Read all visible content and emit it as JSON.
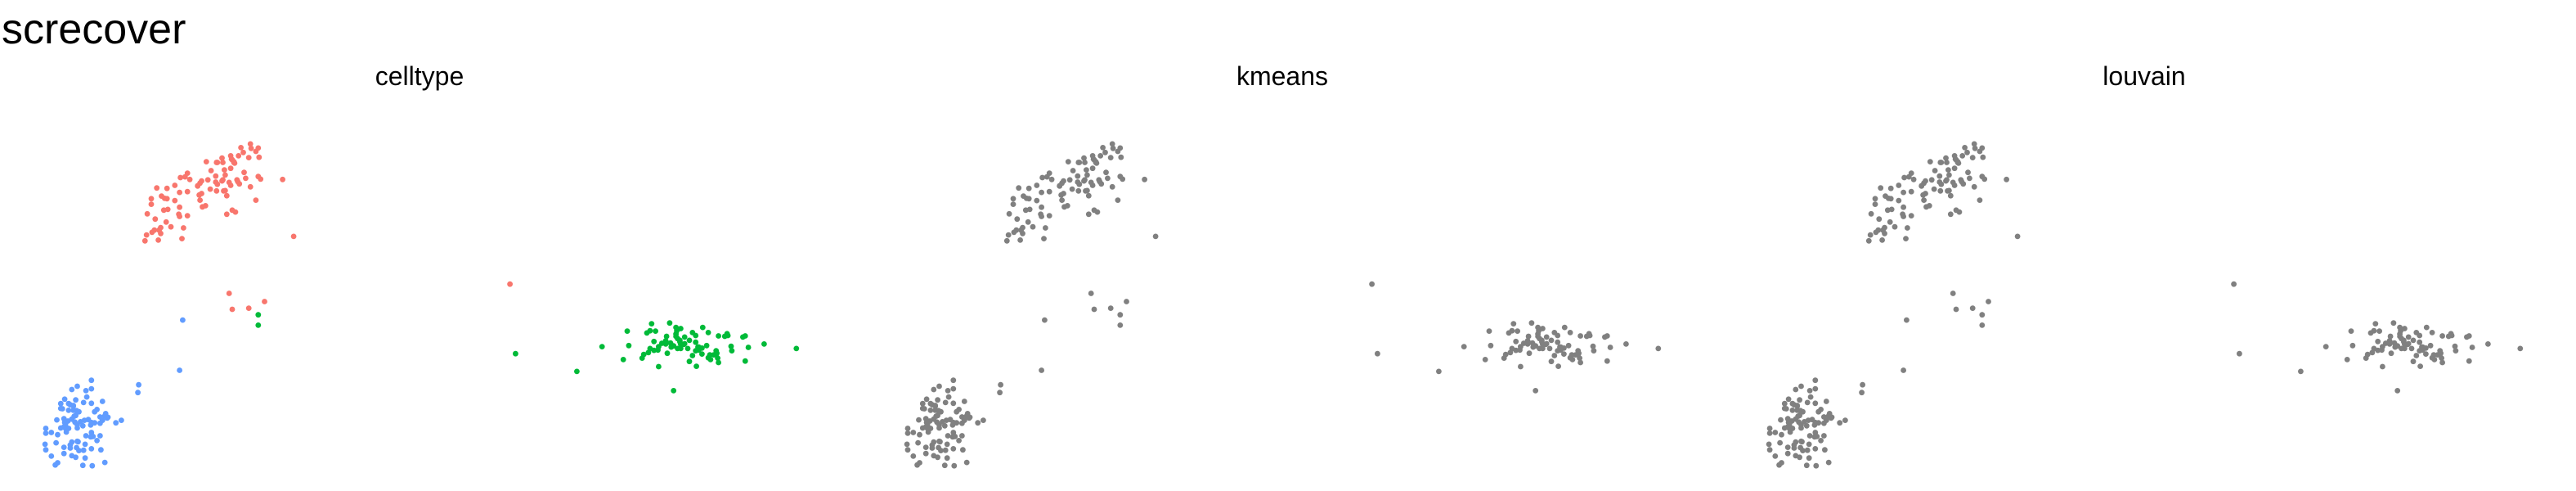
{
  "title": "screcover",
  "chart_data": {
    "type": "scatter",
    "grid": false,
    "axes_visible": false,
    "legend": "none",
    "facet_colors": {
      "celltype": {
        "cluster_1": "#f8766d",
        "cluster_2": "#00ba38",
        "cluster_3": "#619cff"
      },
      "kmeans": {
        "all": "#808080"
      },
      "louvain": {
        "all": "#808080"
      }
    },
    "xlim": [
      0,
      100
    ],
    "ylim": [
      0,
      100
    ],
    "panels": [
      {
        "title": "celltype",
        "color_by_cluster": true
      },
      {
        "title": "kmeans",
        "color_by_cluster": false
      },
      {
        "title": "louvain",
        "color_by_cluster": false
      }
    ],
    "clusters": [
      {
        "id": "cluster_1",
        "points": [
          [
            24.2,
            76.7
          ],
          [
            20.8,
            79.8
          ],
          [
            17.2,
            75.3
          ],
          [
            23.1,
            79.7
          ],
          [
            21.8,
            78.1
          ],
          [
            22.8,
            72.7
          ],
          [
            18.9,
            78.2
          ],
          [
            16.6,
            77.5
          ],
          [
            17.1,
            65.2
          ],
          [
            15.9,
            73.1
          ],
          [
            18.0,
            71.7
          ],
          [
            16.8,
            63.4
          ],
          [
            24.2,
            84.4
          ],
          [
            17.9,
            74.6
          ],
          [
            20.0,
            66.7
          ],
          [
            16.9,
            66.1
          ],
          [
            15.1,
            63.2
          ],
          [
            19.8,
            63.8
          ],
          [
            17.5,
            71.5
          ],
          [
            25.1,
            76.7
          ],
          [
            24.9,
            79.4
          ],
          [
            27.7,
            81.7
          ],
          [
            25.3,
            76.8
          ],
          [
            25.0,
            84.4
          ],
          [
            26.0,
            78.2
          ],
          [
            20.5,
            76.5
          ],
          [
            22.9,
            84.6
          ],
          [
            26.4,
            84.6
          ],
          [
            25.5,
            75.4
          ],
          [
            20.5,
            81.5
          ],
          [
            23.5,
            82.2
          ],
          [
            25.8,
            79.0
          ],
          [
            24.3,
            78.5
          ],
          [
            26.5,
            84.2
          ],
          [
            17.9,
            77.4
          ],
          [
            18.4,
            67.0
          ],
          [
            15.9,
            74.6
          ],
          [
            29.5,
            88.3
          ],
          [
            26.2,
            85.1
          ],
          [
            24.9,
            85.6
          ],
          [
            26.0,
            82.8
          ],
          [
            16.3,
            66.1
          ],
          [
            29.5,
            80.6
          ],
          [
            19.4,
            70.4
          ],
          [
            29.2,
            74.2
          ],
          [
            24.3,
            84.4
          ],
          [
            16.4,
            69.1
          ],
          [
            29.2,
            87.4
          ],
          [
            27.9,
            80.1
          ],
          [
            26.2,
            71.5
          ],
          [
            18.9,
            74.1
          ],
          [
            28.5,
            89.4
          ],
          [
            26.8,
            79.7
          ],
          [
            27.6,
            87.1
          ],
          [
            19.5,
            72.3
          ],
          [
            15.4,
            70.5
          ],
          [
            27.0,
            86.2
          ],
          [
            19.6,
            80.3
          ],
          [
            27.1,
            78.6
          ],
          [
            19.5,
            76.3
          ],
          [
            22.1,
            74.2
          ],
          [
            22.1,
            78.8
          ],
          [
            16.0,
            65.5
          ],
          [
            17.6,
            74.7
          ],
          [
            24.1,
            79.1
          ],
          [
            26.0,
            86.2
          ],
          [
            21.8,
            78.0
          ],
          [
            22.0,
            75.6
          ],
          [
            17.8,
            68.3
          ],
          [
            22.3,
            76.0
          ],
          [
            23.4,
            77.2
          ],
          [
            19.5,
            69.8
          ],
          [
            25.5,
            70.4
          ],
          [
            25.2,
            82.4
          ],
          [
            29.6,
            85.8
          ],
          [
            22.3,
            79.4
          ],
          [
            32.6,
            79.8
          ],
          [
            26.6,
            71.0
          ],
          [
            34.0,
            64.4
          ],
          [
            20.2,
            80.5
          ],
          [
            28.5,
            77.8
          ],
          [
            17.1,
            66.8
          ],
          [
            20.5,
            70.0
          ],
          [
            28.6,
            88.2
          ],
          [
            24.1,
            80.7
          ],
          [
            25.0,
            79.7
          ],
          [
            29.8,
            79.9
          ],
          [
            26.1,
            85.3
          ],
          [
            26.4,
            84.4
          ],
          [
            15.3,
            64.8
          ],
          [
            22.4,
            72.4
          ],
          [
            27.3,
            88.4
          ],
          [
            25.3,
            81.0
          ],
          [
            28.3,
            85.7
          ],
          [
            26.9,
            79.2
          ],
          [
            25.8,
            49.0
          ],
          [
            26.2,
            44.7
          ],
          [
            28.3,
            45.0
          ],
          [
            30.3,
            46.8
          ],
          [
            61.5,
            51.5
          ]
        ]
      },
      {
        "id": "cluster_2",
        "points": [
          [
            82.3,
            34.8
          ],
          [
            80.8,
            35.5
          ],
          [
            82.6,
            38.0
          ],
          [
            80.3,
            33.7
          ],
          [
            79.8,
            36.0
          ],
          [
            78.5,
            32.5
          ],
          [
            83.7,
            35.4
          ],
          [
            82.8,
            34.1
          ],
          [
            87.0,
            31.1
          ],
          [
            83.7,
            37.2
          ],
          [
            85.9,
            34.2
          ],
          [
            81.9,
            35.6
          ],
          [
            86.7,
            31.6
          ],
          [
            85.4,
            34.5
          ],
          [
            78.9,
            38.3
          ],
          [
            84.7,
            32.2
          ],
          [
            82.6,
            39.8
          ],
          [
            89.7,
            33.5
          ],
          [
            84.1,
            34.1
          ],
          [
            85.1,
            35.8
          ],
          [
            83.1,
            35.9
          ],
          [
            86.7,
            38.4
          ],
          [
            76.4,
            38.8
          ],
          [
            83.2,
            39.5
          ],
          [
            79.5,
            40.8
          ],
          [
            79.3,
            34.1
          ],
          [
            84.3,
            30.6
          ],
          [
            84.3,
            36.3
          ],
          [
            83.2,
            35.2
          ],
          [
            85.9,
            32.6
          ],
          [
            85.1,
            37.6
          ],
          [
            82.7,
            38.9
          ],
          [
            89.2,
            37.6
          ],
          [
            91.1,
            37.2
          ],
          [
            82.0,
            34.5
          ],
          [
            85.2,
            29.3
          ],
          [
            87.9,
            31.5
          ],
          [
            81.3,
            35.3
          ],
          [
            86.5,
            34.9
          ],
          [
            87.8,
            32.8
          ],
          [
            88.8,
            37.4
          ],
          [
            78.3,
            31.5
          ],
          [
            84.7,
            38.4
          ],
          [
            82.6,
            37.4
          ],
          [
            83.2,
            34.1
          ],
          [
            82.8,
            36.8
          ],
          [
            85.5,
            34.5
          ],
          [
            79.3,
            38.9
          ],
          [
            81.3,
            36.2
          ],
          [
            80.0,
            38.8
          ],
          [
            88.0,
            30.3
          ],
          [
            87.4,
            32.4
          ],
          [
            81.3,
            35.9
          ],
          [
            91.4,
            30.7
          ],
          [
            79.1,
            33.0
          ],
          [
            91.8,
            34.4
          ],
          [
            86.0,
            39.8
          ],
          [
            76.6,
            34.9
          ],
          [
            85.1,
            33.5
          ],
          [
            87.7,
            33.5
          ],
          [
            88.0,
            37.5
          ],
          [
            91.4,
            37.5
          ],
          [
            83.6,
            35.2
          ],
          [
            81.8,
            41.0
          ],
          [
            85.5,
            33.7
          ],
          [
            89.1,
            38.1
          ],
          [
            79.8,
            33.6
          ],
          [
            83.1,
            36.3
          ],
          [
            80.4,
            34.6
          ],
          [
            89.6,
            34.7
          ],
          [
            81.4,
            37.4
          ],
          [
            81.5,
            32.8
          ],
          [
            86.9,
            32.4
          ],
          [
            93.8,
            35.3
          ],
          [
            97.9,
            34.1
          ],
          [
            80.4,
            29.2
          ],
          [
            73.2,
            34.6
          ],
          [
            82.3,
            22.7
          ],
          [
            70.0,
            27.9
          ],
          [
            75.9,
            31.1
          ],
          [
            62.2,
            32.7
          ],
          [
            29.5,
            40.4
          ],
          [
            29.5,
            43.2
          ]
        ]
      },
      {
        "id": "cluster_3",
        "points": [
          [
            8.5,
            10.3
          ],
          [
            5.0,
            12.5
          ],
          [
            5.0,
            13.8
          ],
          [
            7.9,
            14.9
          ],
          [
            4.6,
            17.8
          ],
          [
            6.0,
            18.5
          ],
          [
            7.6,
            10.5
          ],
          [
            4.8,
            12.9
          ],
          [
            10.1,
            16.5
          ],
          [
            3.2,
            11.4
          ],
          [
            4.8,
            7.4
          ],
          [
            6.6,
            8.9
          ],
          [
            8.3,
            23.2
          ],
          [
            6.0,
            18.7
          ],
          [
            5.0,
            13.3
          ],
          [
            8.3,
            11.4
          ],
          [
            11.4,
            14.0
          ],
          [
            12.1,
            14.7
          ],
          [
            7.2,
            13.2
          ],
          [
            9.5,
            6.7
          ],
          [
            7.4,
            14.7
          ],
          [
            5.8,
            5.1
          ],
          [
            9.7,
            14.7
          ],
          [
            9.0,
            9.2
          ],
          [
            6.3,
            4.7
          ],
          [
            5.1,
            11.5
          ],
          [
            7.3,
            6.6
          ],
          [
            3.9,
            14.8
          ],
          [
            10.0,
            15.9
          ],
          [
            2.5,
            11.2
          ],
          [
            6.3,
            20.2
          ],
          [
            6.4,
            17.3
          ],
          [
            6.2,
            14.2
          ],
          [
            6.0,
            17.4
          ],
          [
            6.5,
            9.0
          ],
          [
            4.0,
            10.8
          ],
          [
            5.4,
            17.4
          ],
          [
            5.8,
            23.0
          ],
          [
            6.5,
            12.6
          ],
          [
            8.2,
            10.2
          ],
          [
            6.7,
            17.0
          ],
          [
            4.8,
            15.1
          ],
          [
            4.0,
            3.2
          ],
          [
            5.4,
            12.5
          ],
          [
            7.7,
            21.0
          ],
          [
            8.3,
            25.5
          ],
          [
            7.6,
            22.7
          ],
          [
            8.7,
            17.0
          ],
          [
            9.7,
            19.8
          ],
          [
            4.9,
            20.4
          ],
          [
            8.4,
            2.4
          ],
          [
            2.5,
            12.5
          ],
          [
            6.7,
            6.5
          ],
          [
            9.4,
            10.5
          ],
          [
            10.0,
            3.3
          ],
          [
            8.3,
            14.1
          ],
          [
            4.8,
            5.7
          ],
          [
            7.3,
            19.5
          ],
          [
            5.6,
            7.2
          ],
          [
            5.8,
            15.0
          ],
          [
            3.2,
            5.0
          ],
          [
            6.5,
            13.4
          ],
          [
            8.3,
            19.3
          ],
          [
            6.3,
            16.0
          ],
          [
            6.9,
            14.3
          ],
          [
            4.9,
            14.1
          ],
          [
            5.6,
            18.9
          ],
          [
            10.3,
            15.3
          ],
          [
            7.2,
            2.5
          ],
          [
            5.4,
            19.2
          ],
          [
            9.0,
            17.6
          ],
          [
            8.2,
            13.4
          ],
          [
            5.3,
            14.5
          ],
          [
            10.4,
            15.5
          ],
          [
            9.4,
            13.9
          ],
          [
            6.1,
            15.8
          ],
          [
            3.8,
            8.6
          ],
          [
            4.4,
            17.9
          ],
          [
            4.4,
            19.2
          ],
          [
            14.2,
            22.2
          ],
          [
            14.3,
            24.3
          ],
          [
            7.5,
            8.2
          ],
          [
            4.4,
            12.6
          ],
          [
            6.4,
            7.3
          ],
          [
            8.3,
            7.0
          ],
          [
            5.8,
            8.8
          ],
          [
            6.5,
            23.9
          ],
          [
            2.4,
            8.2
          ],
          [
            8.4,
            10.3
          ],
          [
            2.5,
            6.7
          ],
          [
            7.5,
            4.5
          ],
          [
            8.7,
            14.0
          ],
          [
            3.7,
            2.6
          ],
          [
            9.4,
            15.6
          ],
          [
            5.6,
            8.0
          ],
          [
            19.9,
            41.8
          ],
          [
            19.5,
            28.2
          ]
        ]
      }
    ]
  }
}
